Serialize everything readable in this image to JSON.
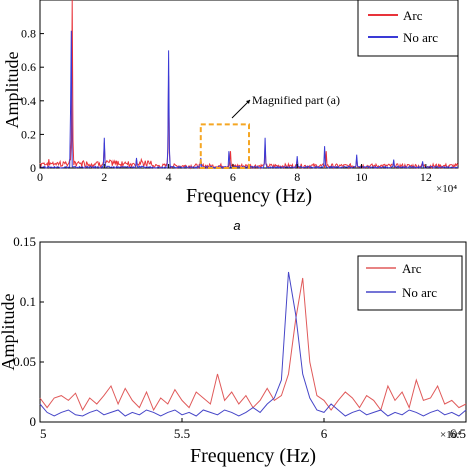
{
  "figure": {
    "panel_a_caption": "a"
  },
  "chart_data": [
    {
      "type": "line",
      "panel": "a",
      "title": "",
      "xlabel": "Frequency (Hz)",
      "ylabel": "Amplitude",
      "x_scale_note": "×10⁴",
      "xlim": [
        0,
        13
      ],
      "ylim": [
        0,
        1
      ],
      "xticks": [
        0,
        2,
        4,
        6,
        8,
        10,
        12
      ],
      "xtick_labels": [
        "0",
        "2",
        "4",
        "6",
        "8",
        "10",
        "12"
      ],
      "yticks": [
        0,
        0.2,
        0.4,
        0.6,
        0.8
      ],
      "ytick_labels": [
        "0",
        "0.2",
        "0.4",
        "0.6",
        "0.8"
      ],
      "legend": {
        "placement": "top-right",
        "entries": [
          "Arc",
          "No arc"
        ]
      },
      "annotation": "Magnified part (a)",
      "highlight_box": {
        "x": [
          5.0,
          6.5
        ],
        "y": [
          0,
          0.26
        ],
        "color": "#f5a623"
      },
      "series": [
        {
          "name": "Arc",
          "color": "#e8333a",
          "peaks": [
            {
              "x": 1.0,
              "y": 1.0
            },
            {
              "x": 2.0,
              "y": 0.15
            },
            {
              "x": 3.0,
              "y": 0.05
            },
            {
              "x": 4.0,
              "y": 0.55
            },
            {
              "x": 5.0,
              "y": 0.05
            },
            {
              "x": 5.92,
              "y": 0.12
            },
            {
              "x": 7.0,
              "y": 0.14
            },
            {
              "x": 8.0,
              "y": 0.05
            },
            {
              "x": 8.9,
              "y": 0.1
            },
            {
              "x": 9.85,
              "y": 0.06
            },
            {
              "x": 11.0,
              "y": 0.04
            },
            {
              "x": 11.9,
              "y": 0.03
            }
          ]
        },
        {
          "name": "No arc",
          "color": "#3a3ad6",
          "peaks": [
            {
              "x": 0.97,
              "y": 0.98
            },
            {
              "x": 2.0,
              "y": 0.18
            },
            {
              "x": 3.0,
              "y": 0.06
            },
            {
              "x": 4.0,
              "y": 0.7
            },
            {
              "x": 5.0,
              "y": 0.06
            },
            {
              "x": 5.88,
              "y": 0.12
            },
            {
              "x": 7.0,
              "y": 0.18
            },
            {
              "x": 8.0,
              "y": 0.07
            },
            {
              "x": 8.85,
              "y": 0.13
            },
            {
              "x": 9.85,
              "y": 0.08
            },
            {
              "x": 11.0,
              "y": 0.05
            },
            {
              "x": 11.9,
              "y": 0.04
            }
          ]
        }
      ]
    },
    {
      "type": "line",
      "panel": "b",
      "title": "",
      "xlabel": "Frequency (Hz)",
      "ylabel": "Amplitude",
      "x_scale_note": "×10⁴",
      "xlim": [
        5,
        6.5
      ],
      "ylim": [
        0,
        0.15
      ],
      "xticks": [
        5,
        5.5,
        6,
        6.5
      ],
      "xtick_labels": [
        "5",
        "5.5",
        "6",
        "6.5"
      ],
      "yticks": [
        0,
        0.05,
        0.1,
        0.15
      ],
      "ytick_labels": [
        "0",
        "0.05",
        "0.1",
        "0.15"
      ],
      "legend": {
        "placement": "top-right",
        "entries": [
          "Arc",
          "No arc"
        ]
      },
      "series": [
        {
          "name": "Arc",
          "color": "#e05a5a",
          "x": [
            5.0,
            5.025,
            5.05,
            5.075,
            5.1,
            5.125,
            5.15,
            5.175,
            5.2,
            5.225,
            5.25,
            5.275,
            5.3,
            5.325,
            5.35,
            5.375,
            5.4,
            5.425,
            5.45,
            5.475,
            5.5,
            5.525,
            5.55,
            5.575,
            5.6,
            5.625,
            5.65,
            5.675,
            5.7,
            5.725,
            5.75,
            5.775,
            5.8,
            5.825,
            5.85,
            5.875,
            5.9,
            5.925,
            5.95,
            5.975,
            6.0,
            6.025,
            6.05,
            6.075,
            6.1,
            6.125,
            6.15,
            6.175,
            6.2,
            6.225,
            6.25,
            6.275,
            6.3,
            6.325,
            6.35,
            6.375,
            6.4,
            6.425,
            6.45,
            6.475,
            6.5
          ],
          "values": [
            0.02,
            0.012,
            0.02,
            0.022,
            0.018,
            0.024,
            0.01,
            0.02,
            0.015,
            0.022,
            0.03,
            0.015,
            0.028,
            0.018,
            0.012,
            0.025,
            0.01,
            0.02,
            0.015,
            0.027,
            0.018,
            0.012,
            0.025,
            0.02,
            0.015,
            0.04,
            0.018,
            0.025,
            0.015,
            0.022,
            0.012,
            0.018,
            0.028,
            0.018,
            0.022,
            0.04,
            0.085,
            0.12,
            0.05,
            0.022,
            0.018,
            0.01,
            0.018,
            0.025,
            0.02,
            0.012,
            0.022,
            0.018,
            0.01,
            0.03,
            0.018,
            0.025,
            0.012,
            0.035,
            0.018,
            0.02,
            0.03,
            0.015,
            0.018,
            0.012,
            0.015
          ]
        },
        {
          "name": "No arc",
          "color": "#4646c8",
          "x": [
            5.0,
            5.025,
            5.05,
            5.075,
            5.1,
            5.125,
            5.15,
            5.175,
            5.2,
            5.225,
            5.25,
            5.275,
            5.3,
            5.325,
            5.35,
            5.375,
            5.4,
            5.425,
            5.45,
            5.475,
            5.5,
            5.525,
            5.55,
            5.575,
            5.6,
            5.625,
            5.65,
            5.675,
            5.7,
            5.725,
            5.75,
            5.775,
            5.8,
            5.825,
            5.85,
            5.875,
            5.9,
            5.925,
            5.95,
            5.975,
            6.0,
            6.025,
            6.05,
            6.075,
            6.1,
            6.125,
            6.15,
            6.175,
            6.2,
            6.225,
            6.25,
            6.275,
            6.3,
            6.325,
            6.35,
            6.375,
            6.4,
            6.425,
            6.45,
            6.475,
            6.5
          ],
          "values": [
            0.015,
            0.008,
            0.005,
            0.008,
            0.01,
            0.006,
            0.005,
            0.008,
            0.01,
            0.006,
            0.008,
            0.01,
            0.005,
            0.008,
            0.006,
            0.01,
            0.008,
            0.005,
            0.008,
            0.01,
            0.006,
            0.008,
            0.005,
            0.01,
            0.008,
            0.006,
            0.01,
            0.008,
            0.005,
            0.008,
            0.012,
            0.008,
            0.015,
            0.02,
            0.035,
            0.125,
            0.09,
            0.04,
            0.02,
            0.01,
            0.008,
            0.015,
            0.01,
            0.005,
            0.008,
            0.01,
            0.006,
            0.008,
            0.01,
            0.005,
            0.008,
            0.006,
            0.01,
            0.008,
            0.005,
            0.008,
            0.01,
            0.006,
            0.008,
            0.005,
            0.01
          ]
        }
      ]
    }
  ]
}
